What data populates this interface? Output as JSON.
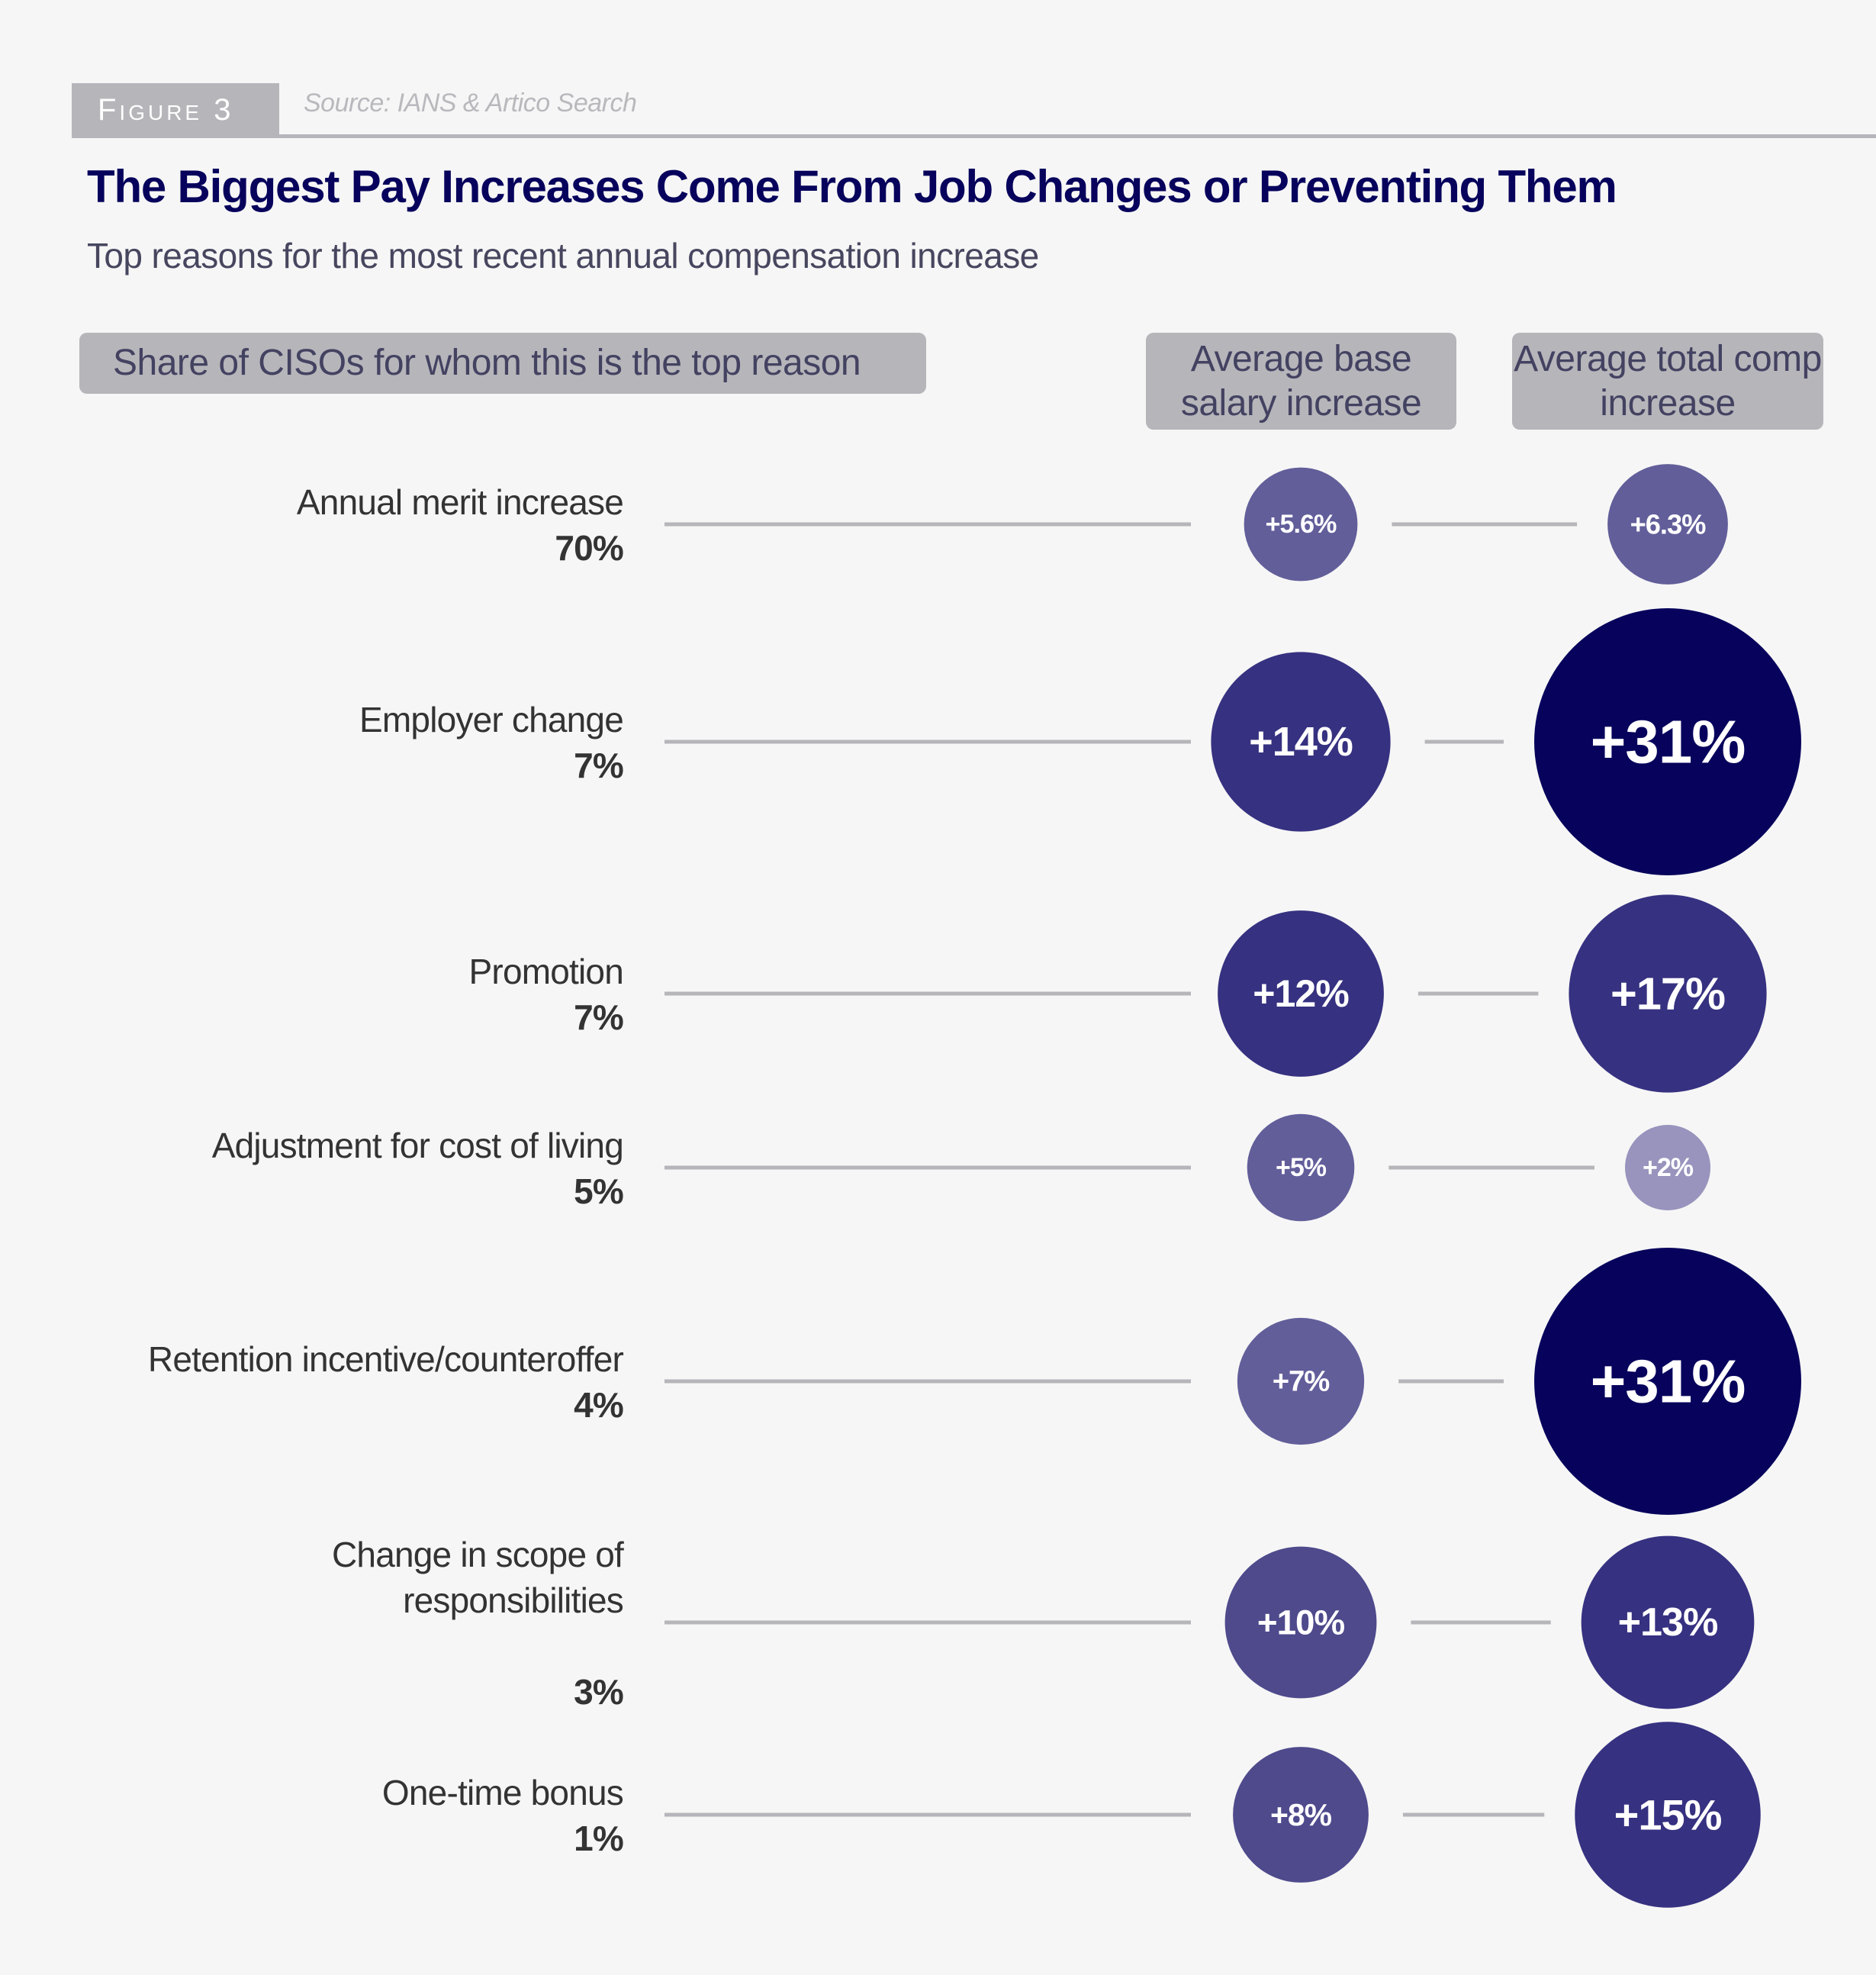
{
  "figure": {
    "tag": "Figure 3",
    "source": "Source: IANS & Artico Search"
  },
  "title": "The Biggest Pay Increases Come From Job Changes or Preventing Them",
  "subtitle": "Top reasons for the most recent annual compensation increase",
  "headers": {
    "share": "Share of CISOs for whom this is the top reason",
    "base": "Average base salary increase",
    "total": "Average total comp increase"
  },
  "colors": {
    "background": "#f6f6f6",
    "title": "#07035c",
    "header_box": "#b6b5ba",
    "connector": "#b6b5ba",
    "bubble_scale": [
      "#9894bd",
      "#7e79ab",
      "#625e9a",
      "#4e4a8c",
      "#363180",
      "#1e196d",
      "#07035c"
    ]
  },
  "chart_data": {
    "type": "bubble-table",
    "title": "The Biggest Pay Increases Come From Job Changes or Preventing Them",
    "subtitle": "Top reasons for the most recent annual compensation increase",
    "columns": [
      "Share of CISOs for whom this is the top reason",
      "Average base salary increase",
      "Average total comp increase"
    ],
    "categories": [
      "Annual merit increase",
      "Employer change",
      "Promotion",
      "Adjustment for cost of living",
      "Retention incentive/counteroffer",
      "Change in scope of responsibilities",
      "One-time bonus"
    ],
    "rows": [
      {
        "reason": "Annual merit increase",
        "share_pct": 70,
        "share_label": "70%",
        "base_pct": 5.6,
        "base_label": "+5.6%",
        "total_pct": 6.3,
        "total_label": "+6.3%"
      },
      {
        "reason": "Employer change",
        "share_pct": 7,
        "share_label": "7%",
        "base_pct": 14,
        "base_label": "+14%",
        "total_pct": 31,
        "total_label": "+31%"
      },
      {
        "reason": "Promotion",
        "share_pct": 7,
        "share_label": "7%",
        "base_pct": 12,
        "base_label": "+12%",
        "total_pct": 17,
        "total_label": "+17%"
      },
      {
        "reason": "Adjustment for cost of living",
        "share_pct": 5,
        "share_label": "5%",
        "base_pct": 5,
        "base_label": "+5%",
        "total_pct": 2,
        "total_label": "+2%"
      },
      {
        "reason": "Retention incentive/counteroffer",
        "share_pct": 4,
        "share_label": "4%",
        "base_pct": 7,
        "base_label": "+7%",
        "total_pct": 31,
        "total_label": "+31%"
      },
      {
        "reason": "Change in scope of responsibilities",
        "share_pct": 3,
        "share_label": "3%",
        "base_pct": 10,
        "base_label": "+10%",
        "total_pct": 13,
        "total_label": "+13%"
      },
      {
        "reason": "One-time bonus",
        "share_pct": 1,
        "share_label": "1%",
        "base_pct": 8,
        "base_label": "+8%",
        "total_pct": 15,
        "total_label": "+15%"
      }
    ],
    "series": [
      {
        "name": "Average base salary increase",
        "values": [
          5.6,
          14,
          12,
          5,
          7,
          10,
          8
        ]
      },
      {
        "name": "Average total comp increase",
        "values": [
          6.3,
          31,
          17,
          2,
          31,
          13,
          15
        ]
      }
    ],
    "share_values": [
      70,
      7,
      7,
      5,
      4,
      3,
      1
    ],
    "encoding": "bubble area and color darkness scale with increase value",
    "grid": false,
    "legend": "none"
  }
}
